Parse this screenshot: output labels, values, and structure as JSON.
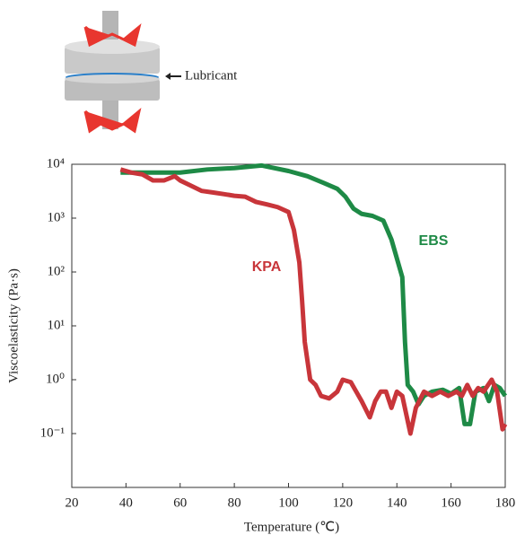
{
  "lubricant_label": "Lubricant",
  "chart_data": {
    "type": "line",
    "xlabel": "Temperature (℃)",
    "ylabel": "Viscoelasticity  (Pa·s)",
    "xlim": [
      20,
      180
    ],
    "xticks": [
      20,
      40,
      60,
      80,
      100,
      120,
      140,
      160,
      180
    ],
    "ylim": [
      0.01,
      10000
    ],
    "log_y": true,
    "yticks": [
      {
        "value": 10000,
        "label": "10⁴"
      },
      {
        "value": 1000,
        "label": "10³"
      },
      {
        "value": 100,
        "label": "10²"
      },
      {
        "value": 10,
        "label": "10¹"
      },
      {
        "value": 1,
        "label": "10⁰"
      },
      {
        "value": 0.1,
        "label": "10⁻¹"
      }
    ],
    "series": [
      {
        "name": "EBS",
        "color": "#1e8a46",
        "x": [
          38,
          40,
          50,
          60,
          70,
          80,
          90,
          100,
          107,
          113,
          118,
          121,
          124,
          127,
          131,
          135,
          138,
          142,
          143,
          144,
          146,
          148,
          150,
          153,
          157,
          160,
          163,
          165,
          167,
          169,
          172,
          174,
          176,
          178,
          180
        ],
        "values": [
          7000,
          7000,
          7000,
          7000,
          8000,
          8500,
          9500,
          7500,
          6000,
          4500,
          3500,
          2500,
          1500,
          1200,
          1100,
          900,
          400,
          80,
          5,
          0.8,
          0.6,
          0.35,
          0.5,
          0.6,
          0.65,
          0.55,
          0.7,
          0.15,
          0.15,
          0.6,
          0.7,
          0.4,
          0.8,
          0.7,
          0.5
        ]
      },
      {
        "name": "KPA",
        "color": "#c8353a",
        "x": [
          38,
          42,
          46,
          50,
          54,
          58,
          60,
          64,
          68,
          72,
          76,
          80,
          84,
          88,
          92,
          96,
          100,
          102,
          104,
          105,
          106,
          108,
          110,
          112,
          115,
          118,
          120,
          123,
          125,
          127,
          130,
          132,
          134,
          136,
          138,
          140,
          142,
          145,
          147,
          150,
          153,
          156,
          159,
          162,
          164,
          166,
          168,
          170,
          172,
          175,
          177,
          179,
          180
        ],
        "values": [
          8000,
          7000,
          6500,
          5000,
          5000,
          6000,
          5000,
          4000,
          3200,
          3000,
          2800,
          2600,
          2500,
          2000,
          1800,
          1600,
          1300,
          600,
          150,
          30,
          5,
          1,
          0.8,
          0.5,
          0.45,
          0.6,
          1.0,
          0.9,
          0.6,
          0.4,
          0.2,
          0.4,
          0.6,
          0.6,
          0.3,
          0.6,
          0.5,
          0.1,
          0.3,
          0.6,
          0.5,
          0.6,
          0.5,
          0.6,
          0.5,
          0.8,
          0.5,
          0.7,
          0.6,
          1.0,
          0.6,
          0.12,
          0.15
        ]
      }
    ]
  }
}
